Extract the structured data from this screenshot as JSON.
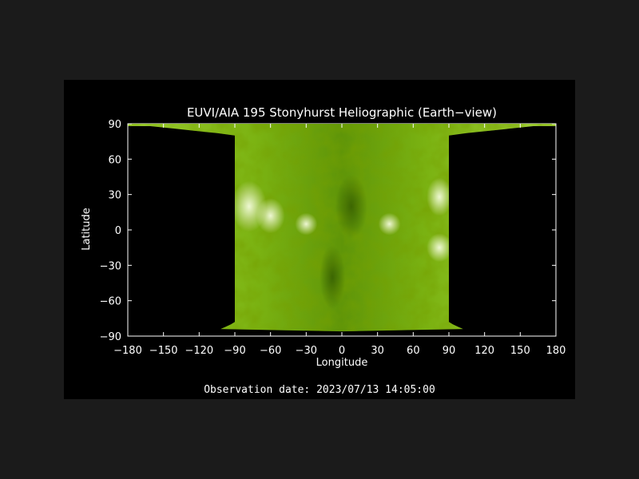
{
  "map": {
    "title": "EUVI/AIA 195 Stonyhurst Heliographic (Earth−view)",
    "xlabel": "Longitude",
    "ylabel": "Latitude",
    "x_ticks": [
      "−180",
      "−150",
      "−120",
      "−90",
      "−60",
      "−30",
      "0",
      "30",
      "60",
      "90",
      "120",
      "150",
      "180"
    ],
    "y_ticks": [
      "90",
      "60",
      "30",
      "0",
      "−30",
      "−60",
      "−90"
    ],
    "xlim": [
      -180,
      180
    ],
    "ylim": [
      -90,
      90
    ],
    "projection": "Stonyhurst Heliographic",
    "visible_longitude_range": [
      -90,
      90
    ],
    "observation_label": "Observation date: 2023/07/13 14:05:00"
  },
  "colors": {
    "background": "#1b1b1b",
    "plot_background": "#000000",
    "sun_base": "#7ab210",
    "sun_bright": "#eef6c8",
    "sun_dark": "#2f5a00",
    "axes": "#ffffff"
  }
}
